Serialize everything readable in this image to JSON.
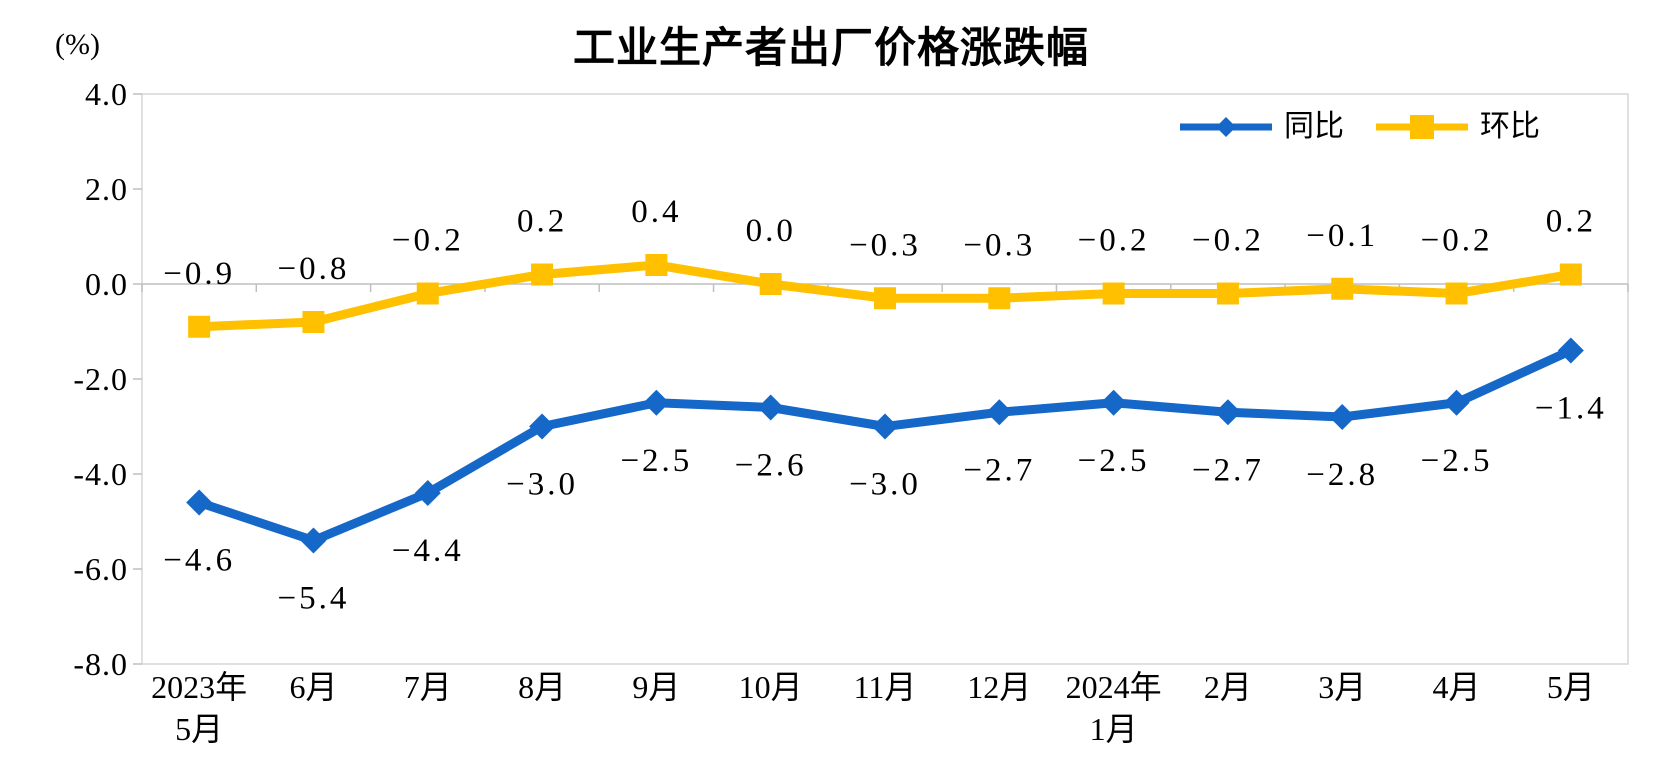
{
  "title": "工业生产者出厂价格涨跌幅",
  "unit_label": "(%)",
  "legend": {
    "yoy_label": "同比",
    "mom_label": "环比"
  },
  "colors": {
    "yoy_blue": "#1567C8",
    "mom_yellow": "#FFC000",
    "plot_border": "#D6D6D6",
    "axis_line": "#BFBFBF",
    "text": "#000000",
    "background": "#FFFFFF"
  },
  "chart_data": {
    "type": "line",
    "title": "工业生产者出厂价格涨跌幅",
    "ylabel": "(%)",
    "xlabel": "",
    "ylim": [
      -8.0,
      4.0
    ],
    "ytick_step": 2.0,
    "yticks": [
      "4.0",
      "2.0",
      "0.0",
      "-2.0",
      "-4.0",
      "-6.0",
      "-8.0"
    ],
    "grid": false,
    "legend_position": "top-right-inside",
    "categories": [
      [
        "2023年",
        "5月"
      ],
      [
        "6月"
      ],
      [
        "7月"
      ],
      [
        "8月"
      ],
      [
        "9月"
      ],
      [
        "10月"
      ],
      [
        "11月"
      ],
      [
        "12月"
      ],
      [
        "2024年",
        "1月"
      ],
      [
        "2月"
      ],
      [
        "3月"
      ],
      [
        "4月"
      ],
      [
        "5月"
      ]
    ],
    "series": [
      {
        "name": "同比",
        "marker": "diamond",
        "color": "#1567C8",
        "label_position": "below",
        "values": [
          -4.6,
          -5.4,
          -4.4,
          -3.0,
          -2.5,
          -2.6,
          -3.0,
          -2.7,
          -2.5,
          -2.7,
          -2.8,
          -2.5,
          -1.4
        ],
        "labels": [
          "−4.6",
          "−5.4",
          "−4.4",
          "−3.0",
          "−2.5",
          "−2.6",
          "−3.0",
          "−2.7",
          "−2.5",
          "−2.7",
          "−2.8",
          "−2.5",
          "−1.4"
        ]
      },
      {
        "name": "环比",
        "marker": "square",
        "color": "#FFC000",
        "label_position": "above",
        "values": [
          -0.9,
          -0.8,
          -0.2,
          0.2,
          0.4,
          0.0,
          -0.3,
          -0.3,
          -0.2,
          -0.2,
          -0.1,
          -0.2,
          0.2
        ],
        "labels": [
          "−0.9",
          "−0.8",
          "−0.2",
          "0.2",
          "0.4",
          "0.0",
          "−0.3",
          "−0.3",
          "−0.2",
          "−0.2",
          "−0.1",
          "−0.2",
          "0.2"
        ]
      }
    ]
  }
}
